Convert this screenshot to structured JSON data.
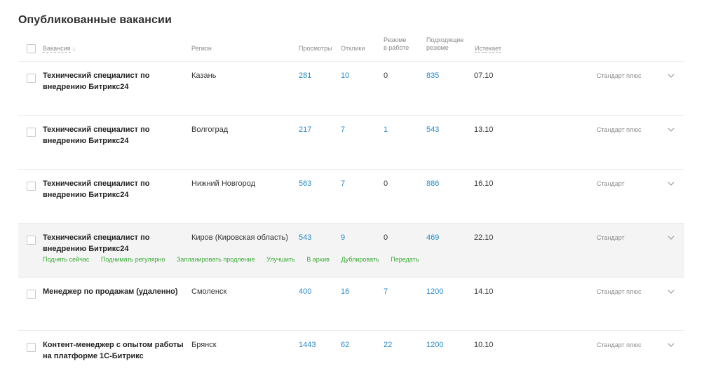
{
  "page_title": "Опубликованные вакансии",
  "headers": {
    "vacancy": "Вакансия",
    "sort_arrow": "↓",
    "region": "Регион",
    "views": "Просмотры",
    "responses": "Отклики",
    "resume_in_work_line1": "Резюме",
    "resume_in_work_line2": "в работе",
    "matching_line1": "Подходящие",
    "matching_line2": "резюме",
    "expires": "Истекает"
  },
  "rows": [
    {
      "title_line1": "Технический специалист по",
      "title_line2": "внедрению Битрикс24",
      "region": "Казань",
      "views": "281",
      "responses": "10",
      "in_work": "0",
      "matching": "835",
      "expires": "07.10",
      "tariff": "Стандарт плюс"
    },
    {
      "title_line1": "Технический специалист по",
      "title_line2": "внедрению Битрикс24",
      "region": "Волгоград",
      "views": "217",
      "responses": "7",
      "in_work": "1",
      "matching": "543",
      "expires": "13.10",
      "tariff": "Стандарт плюс"
    },
    {
      "title_line1": "Технический специалист по",
      "title_line2": "внедрению Битрикс24",
      "region": "Нижний Новгород",
      "views": "563",
      "responses": "7",
      "in_work": "0",
      "matching": "886",
      "expires": "16.10",
      "tariff": "Стандарт"
    },
    {
      "title_line1": "Технический специалист по",
      "title_line2": "внедрению Битрикс24",
      "region": "Киров (Кировская область)",
      "views": "543",
      "responses": "9",
      "in_work": "0",
      "matching": "469",
      "expires": "22.10",
      "tariff": "Стандарт"
    },
    {
      "title_line1": "Менеджер по продажам (удаленно)",
      "title_line2": "",
      "region": "Смоленск",
      "views": "400",
      "responses": "16",
      "in_work": "7",
      "matching": "1200",
      "expires": "14.10",
      "tariff": "Стандарт плюс"
    },
    {
      "title_line1": "Контент-менеджер с опытом работы",
      "title_line2": "на платформе 1С-Битрикс",
      "region": "Брянск",
      "views": "1443",
      "responses": "62",
      "in_work": "22",
      "matching": "1200",
      "expires": "10.10",
      "tariff": "Стандарт плюс"
    }
  ],
  "row_actions": {
    "raise_now": "Поднять сейчас",
    "raise_regularly": "Поднимать регулярно",
    "schedule_extension": "Запланировать продление",
    "improve": "Улучшить",
    "archive": "В архив",
    "duplicate": "Дублировать",
    "transfer": "Передать"
  },
  "colors": {
    "link_blue": "#2b8ac6",
    "action_green": "#3aaa35",
    "selected_row_bg": "#f4f4f4"
  },
  "icons": {
    "expand": "chevron-down-icon"
  }
}
